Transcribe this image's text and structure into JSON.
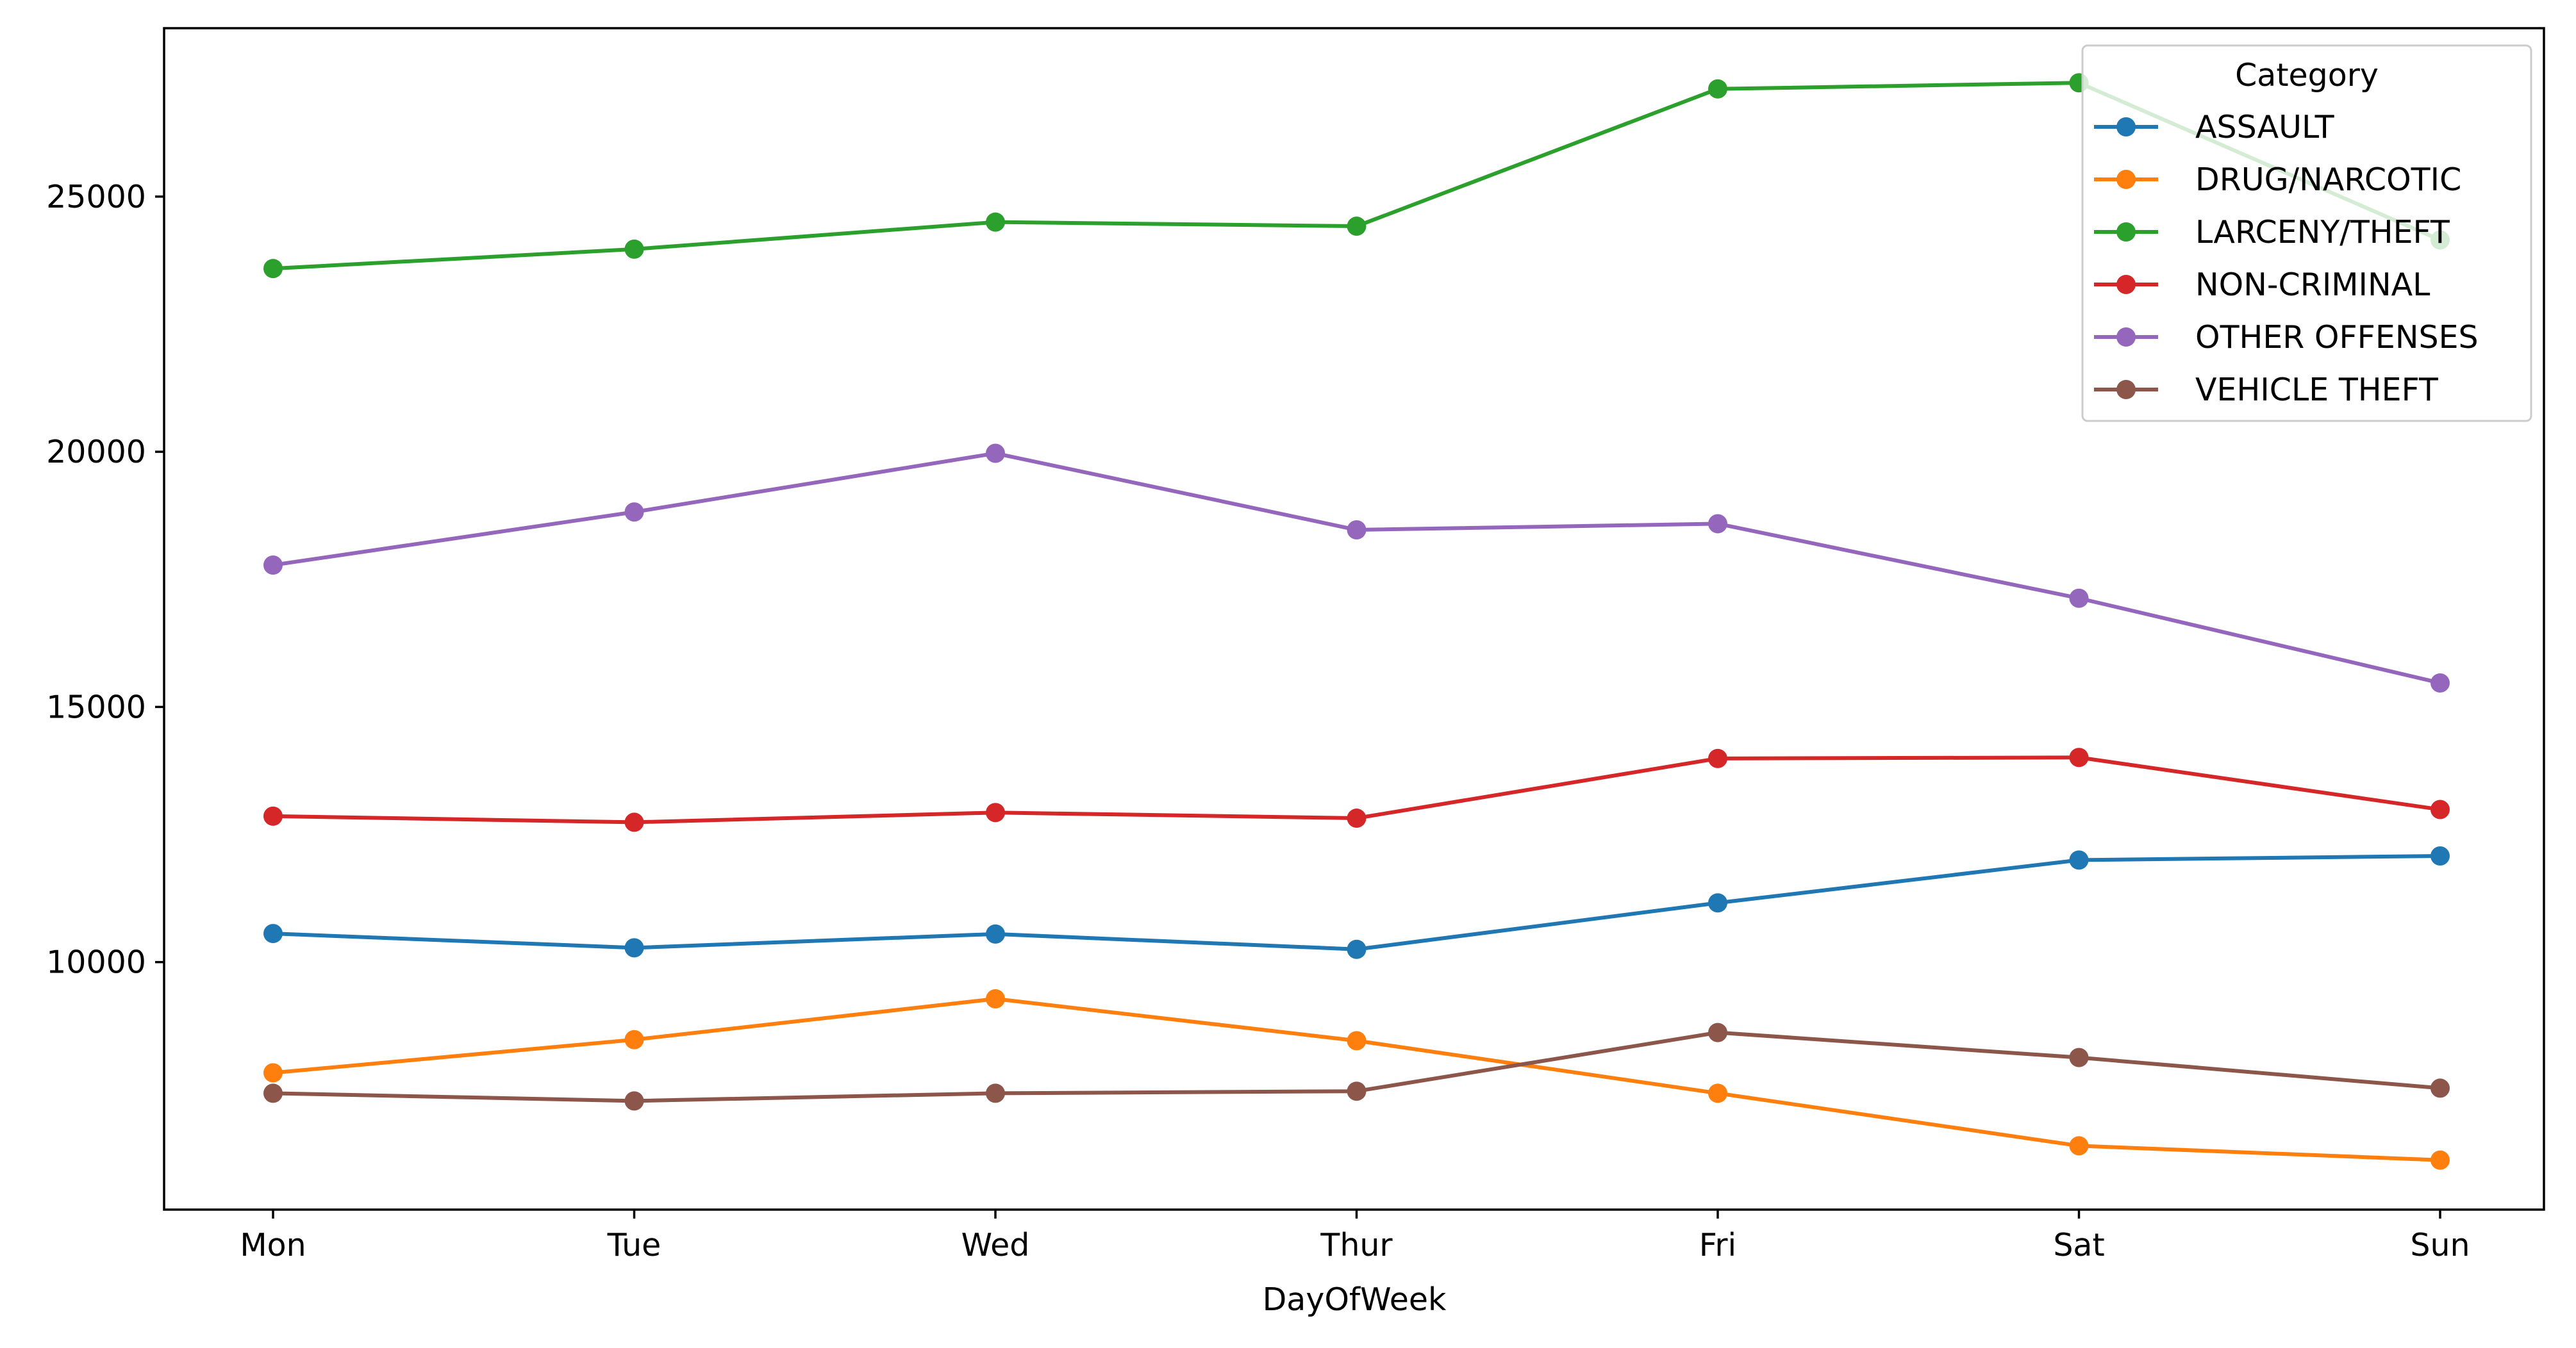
{
  "chart_data": {
    "type": "line",
    "title": "",
    "xlabel": "DayOfWeek",
    "ylabel": "",
    "categories": [
      "Mon",
      "Tue",
      "Wed",
      "Thur",
      "Fri",
      "Sat",
      "Sun"
    ],
    "ylim": [
      5150,
      28300
    ],
    "yticks": [
      10000,
      15000,
      20000,
      25000
    ],
    "ytick_labels": [
      "10000",
      "15000",
      "20000",
      "25000"
    ],
    "grid": false,
    "legend": {
      "title": "Category",
      "placement": "top-right"
    },
    "series": [
      {
        "name": "ASSAULT",
        "color": "#1f77b4",
        "marker": "circle",
        "values": [
          10560,
          10280,
          10550,
          10250,
          11160,
          12000,
          12080
        ]
      },
      {
        "name": "DRUG/NARCOTIC",
        "color": "#ff7f0e",
        "marker": "circle",
        "values": [
          7830,
          8480,
          9280,
          8460,
          7430,
          6400,
          6120
        ]
      },
      {
        "name": "LARCENY/THEFT",
        "color": "#2ca02c",
        "marker": "circle",
        "values": [
          23590,
          23970,
          24500,
          24420,
          27110,
          27230,
          24150
        ]
      },
      {
        "name": "NON-CRIMINAL",
        "color": "#d62728",
        "marker": "circle",
        "values": [
          12860,
          12740,
          12930,
          12820,
          13990,
          14010,
          12990
        ]
      },
      {
        "name": "OTHER OFFENSES",
        "color": "#9467bd",
        "marker": "circle",
        "values": [
          17780,
          18820,
          19970,
          18470,
          18590,
          17130,
          15470
        ]
      },
      {
        "name": "VEHICLE THEFT",
        "color": "#8c564b",
        "marker": "circle",
        "values": [
          7430,
          7280,
          7430,
          7470,
          8620,
          8130,
          7530
        ]
      }
    ]
  }
}
